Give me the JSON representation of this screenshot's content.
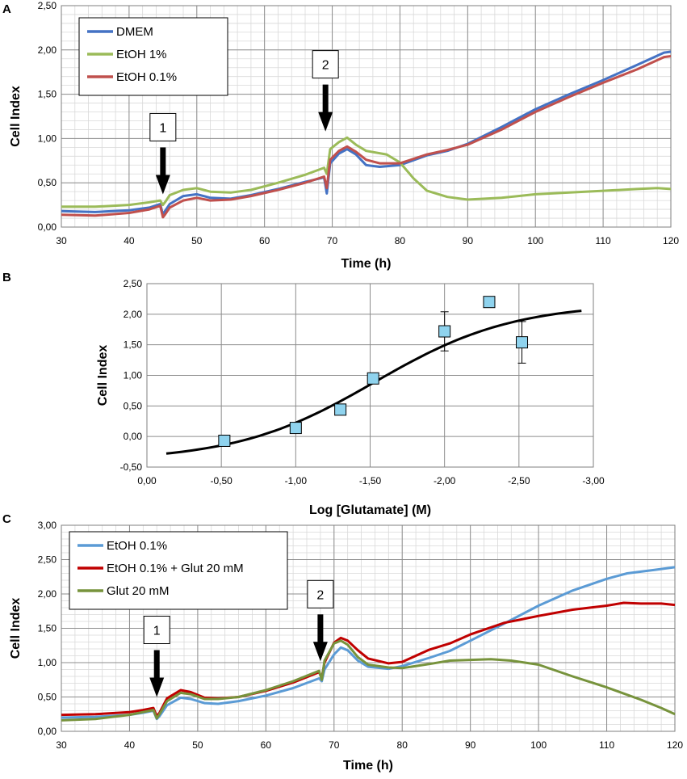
{
  "chart_data": [
    {
      "panel": "A",
      "type": "line",
      "xlabel": "Time (h)",
      "ylabel": "Cell Index",
      "xlim": [
        30,
        120
      ],
      "ylim": [
        0,
        2.5
      ],
      "xticks": [
        30,
        40,
        50,
        60,
        70,
        80,
        90,
        100,
        110,
        120
      ],
      "xtick_labels": [
        "30",
        "40",
        "50",
        "60",
        "70",
        "80",
        "90",
        "100",
        "110",
        "120"
      ],
      "yticks": [
        0,
        0.5,
        1.0,
        1.5,
        2.0,
        2.5
      ],
      "ytick_labels": [
        "0,00",
        "0,50",
        "1,00",
        "1,50",
        "2,00",
        "2,50"
      ],
      "grid": true,
      "legend_position": "top-left",
      "series": [
        {
          "name": "DMEM",
          "color": "#4472c4",
          "points": [
            [
              30,
              0.18
            ],
            [
              35,
              0.17
            ],
            [
              40,
              0.19
            ],
            [
              43,
              0.22
            ],
            [
              44.6,
              0.26
            ],
            [
              45,
              0.14
            ],
            [
              45.3,
              0.18
            ],
            [
              46,
              0.26
            ],
            [
              48,
              0.35
            ],
            [
              50,
              0.37
            ],
            [
              52,
              0.33
            ],
            [
              55,
              0.32
            ],
            [
              58,
              0.36
            ],
            [
              62,
              0.43
            ],
            [
              66,
              0.51
            ],
            [
              68.8,
              0.56
            ],
            [
              69.2,
              0.38
            ],
            [
              69.7,
              0.72
            ],
            [
              71,
              0.83
            ],
            [
              72.2,
              0.88
            ],
            [
              73.5,
              0.82
            ],
            [
              75,
              0.7
            ],
            [
              77,
              0.68
            ],
            [
              80,
              0.7
            ],
            [
              84,
              0.81
            ],
            [
              87,
              0.86
            ],
            [
              90,
              0.94
            ],
            [
              95,
              1.13
            ],
            [
              100,
              1.33
            ],
            [
              105,
              1.5
            ],
            [
              110,
              1.66
            ],
            [
              115,
              1.83
            ],
            [
              119,
              1.97
            ],
            [
              120,
              1.98
            ]
          ]
        },
        {
          "name": "EtOH 1%",
          "color": "#9bbb59",
          "points": [
            [
              30,
              0.23
            ],
            [
              35,
              0.23
            ],
            [
              40,
              0.25
            ],
            [
              43,
              0.28
            ],
            [
              44.6,
              0.3
            ],
            [
              45,
              0.25
            ],
            [
              45.4,
              0.29
            ],
            [
              46,
              0.36
            ],
            [
              48,
              0.42
            ],
            [
              50,
              0.44
            ],
            [
              52,
              0.4
            ],
            [
              55,
              0.39
            ],
            [
              58,
              0.42
            ],
            [
              62,
              0.5
            ],
            [
              66,
              0.59
            ],
            [
              68.8,
              0.67
            ],
            [
              69.2,
              0.6
            ],
            [
              69.7,
              0.88
            ],
            [
              71,
              0.96
            ],
            [
              72.2,
              1.01
            ],
            [
              73.5,
              0.93
            ],
            [
              75,
              0.86
            ],
            [
              78,
              0.82
            ],
            [
              80,
              0.73
            ],
            [
              82,
              0.55
            ],
            [
              84,
              0.41
            ],
            [
              87,
              0.34
            ],
            [
              90,
              0.31
            ],
            [
              95,
              0.33
            ],
            [
              100,
              0.37
            ],
            [
              105,
              0.39
            ],
            [
              110,
              0.41
            ],
            [
              115,
              0.43
            ],
            [
              118,
              0.44
            ],
            [
              120,
              0.43
            ]
          ]
        },
        {
          "name": "EtOH 0.1%",
          "color": "#c0504d",
          "points": [
            [
              30,
              0.14
            ],
            [
              35,
              0.13
            ],
            [
              40,
              0.16
            ],
            [
              43,
              0.2
            ],
            [
              44.6,
              0.24
            ],
            [
              45,
              0.11
            ],
            [
              45.3,
              0.14
            ],
            [
              46,
              0.22
            ],
            [
              48,
              0.3
            ],
            [
              50,
              0.33
            ],
            [
              52,
              0.3
            ],
            [
              55,
              0.31
            ],
            [
              58,
              0.35
            ],
            [
              62,
              0.42
            ],
            [
              66,
              0.5
            ],
            [
              68.8,
              0.57
            ],
            [
              69.2,
              0.44
            ],
            [
              69.7,
              0.76
            ],
            [
              71,
              0.86
            ],
            [
              72.2,
              0.91
            ],
            [
              73.5,
              0.85
            ],
            [
              75,
              0.76
            ],
            [
              77,
              0.72
            ],
            [
              80,
              0.72
            ],
            [
              84,
              0.82
            ],
            [
              87,
              0.87
            ],
            [
              90,
              0.93
            ],
            [
              95,
              1.1
            ],
            [
              100,
              1.3
            ],
            [
              105,
              1.47
            ],
            [
              110,
              1.63
            ],
            [
              115,
              1.78
            ],
            [
              119,
              1.92
            ],
            [
              120,
              1.93
            ]
          ]
        }
      ],
      "annotations": [
        {
          "label": "1",
          "x": 45,
          "y_arrow_tip": 0.37
        },
        {
          "label": "2",
          "x": 69,
          "y_arrow_tip": 1.08
        }
      ]
    },
    {
      "panel": "B",
      "type": "scatter",
      "xlabel": "Log [Glutamate] (M)",
      "ylabel": "Cell Index",
      "xlim": [
        0,
        -3
      ],
      "ylim": [
        -0.5,
        2.5
      ],
      "xticks": [
        0,
        -0.5,
        -1.0,
        -1.5,
        -2.0,
        -2.5,
        -3.0
      ],
      "xtick_labels": [
        "0,00",
        "-0,50",
        "-1,00",
        "-1,50",
        "-2,00",
        "-2,50",
        "-3,00"
      ],
      "yticks": [
        -0.5,
        0,
        0.5,
        1.0,
        1.5,
        2.0,
        2.5
      ],
      "ytick_labels": [
        "-0,50",
        "0,00",
        "0,50",
        "1,00",
        "1,50",
        "2,00",
        "2,50"
      ],
      "grid": true,
      "marker_color": "#8fd3ee",
      "points": [
        {
          "x": -0.52,
          "y": -0.07,
          "err": 0
        },
        {
          "x": -1.0,
          "y": 0.14,
          "err": 0
        },
        {
          "x": -1.3,
          "y": 0.44,
          "err": 0
        },
        {
          "x": -1.52,
          "y": 0.95,
          "err": 0
        },
        {
          "x": -2.0,
          "y": 1.72,
          "err": 0.32
        },
        {
          "x": -2.3,
          "y": 2.2,
          "err": 0
        },
        {
          "x": -2.52,
          "y": 1.54,
          "err": 0.34
        }
      ],
      "fit_curve": {
        "color": "#000000",
        "x_range": [
          -0.13,
          -2.92
        ],
        "bottom": -0.4,
        "top": 2.18,
        "ec50": -1.53,
        "slope": 2.15
      }
    },
    {
      "panel": "C",
      "type": "line",
      "xlabel": "Time (h)",
      "ylabel": "Cell Index",
      "xlim": [
        30,
        120
      ],
      "ylim": [
        0,
        3
      ],
      "xticks": [
        30,
        40,
        50,
        60,
        70,
        80,
        90,
        100,
        110,
        120
      ],
      "xtick_labels": [
        "30",
        "40",
        "50",
        "60",
        "70",
        "80",
        "90",
        "100",
        "110",
        "120"
      ],
      "yticks": [
        0,
        0.5,
        1.0,
        1.5,
        2.0,
        2.5,
        3.0
      ],
      "ytick_labels": [
        "0,00",
        "0,50",
        "1,00",
        "1,50",
        "2,00",
        "2,50",
        "3,00"
      ],
      "grid": true,
      "legend_position": "top-left",
      "series": [
        {
          "name": "EtOH 0.1%",
          "color": "#5b9bd5",
          "points": [
            [
              30,
              0.2
            ],
            [
              35,
              0.21
            ],
            [
              40,
              0.24
            ],
            [
              42,
              0.27
            ],
            [
              43.5,
              0.3
            ],
            [
              44,
              0.18
            ],
            [
              44.4,
              0.22
            ],
            [
              45.5,
              0.38
            ],
            [
              47.5,
              0.49
            ],
            [
              49,
              0.47
            ],
            [
              51,
              0.41
            ],
            [
              53,
              0.4
            ],
            [
              56,
              0.44
            ],
            [
              60,
              0.52
            ],
            [
              64,
              0.63
            ],
            [
              67.8,
              0.77
            ],
            [
              68.2,
              0.73
            ],
            [
              68.6,
              0.9
            ],
            [
              70,
              1.12
            ],
            [
              71,
              1.22
            ],
            [
              72,
              1.18
            ],
            [
              73.5,
              1.03
            ],
            [
              75,
              0.94
            ],
            [
              78,
              0.91
            ],
            [
              80,
              0.95
            ],
            [
              84,
              1.07
            ],
            [
              87,
              1.17
            ],
            [
              90,
              1.32
            ],
            [
              95,
              1.57
            ],
            [
              100,
              1.83
            ],
            [
              105,
              2.05
            ],
            [
              110,
              2.22
            ],
            [
              113,
              2.3
            ],
            [
              117,
              2.35
            ],
            [
              120,
              2.39
            ]
          ]
        },
        {
          "name": "EtOH 0.1% + Glut 20 mM",
          "color": "#c00000",
          "points": [
            [
              30,
              0.24
            ],
            [
              35,
              0.25
            ],
            [
              40,
              0.28
            ],
            [
              42,
              0.31
            ],
            [
              43.5,
              0.34
            ],
            [
              44,
              0.22
            ],
            [
              44.4,
              0.27
            ],
            [
              45.5,
              0.48
            ],
            [
              47.5,
              0.6
            ],
            [
              49,
              0.57
            ],
            [
              51,
              0.49
            ],
            [
              53,
              0.48
            ],
            [
              56,
              0.5
            ],
            [
              60,
              0.59
            ],
            [
              64,
              0.71
            ],
            [
              67.8,
              0.86
            ],
            [
              68.2,
              0.78
            ],
            [
              68.6,
              1.0
            ],
            [
              70,
              1.29
            ],
            [
              71,
              1.36
            ],
            [
              72,
              1.32
            ],
            [
              73.5,
              1.18
            ],
            [
              75,
              1.06
            ],
            [
              78,
              0.99
            ],
            [
              80,
              1.01
            ],
            [
              84,
              1.19
            ],
            [
              87,
              1.28
            ],
            [
              90,
              1.41
            ],
            [
              95,
              1.58
            ],
            [
              100,
              1.68
            ],
            [
              105,
              1.77
            ],
            [
              110,
              1.83
            ],
            [
              112.5,
              1.87
            ],
            [
              115,
              1.86
            ],
            [
              118,
              1.86
            ],
            [
              120,
              1.84
            ]
          ]
        },
        {
          "name": "Glut 20 mM",
          "color": "#77933c",
          "points": [
            [
              30,
              0.16
            ],
            [
              35,
              0.18
            ],
            [
              40,
              0.24
            ],
            [
              42,
              0.28
            ],
            [
              43.5,
              0.31
            ],
            [
              44,
              0.19
            ],
            [
              44.4,
              0.25
            ],
            [
              45.5,
              0.44
            ],
            [
              47.5,
              0.56
            ],
            [
              49,
              0.54
            ],
            [
              51,
              0.47
            ],
            [
              53,
              0.47
            ],
            [
              56,
              0.5
            ],
            [
              60,
              0.6
            ],
            [
              64,
              0.73
            ],
            [
              67.8,
              0.88
            ],
            [
              68.2,
              0.75
            ],
            [
              68.6,
              1.03
            ],
            [
              70,
              1.28
            ],
            [
              71,
              1.32
            ],
            [
              72,
              1.26
            ],
            [
              73.5,
              1.08
            ],
            [
              75,
              0.97
            ],
            [
              78,
              0.93
            ],
            [
              80,
              0.92
            ],
            [
              84,
              0.98
            ],
            [
              87,
              1.03
            ],
            [
              90,
              1.04
            ],
            [
              93,
              1.05
            ],
            [
              96,
              1.03
            ],
            [
              100,
              0.97
            ],
            [
              105,
              0.8
            ],
            [
              110,
              0.64
            ],
            [
              115,
              0.46
            ],
            [
              118,
              0.34
            ],
            [
              120,
              0.25
            ]
          ]
        }
      ],
      "annotations": [
        {
          "label": "1",
          "x": 44,
          "y_arrow_tip": 0.5
        },
        {
          "label": "2",
          "x": 68,
          "y_arrow_tip": 1.02
        }
      ]
    }
  ]
}
